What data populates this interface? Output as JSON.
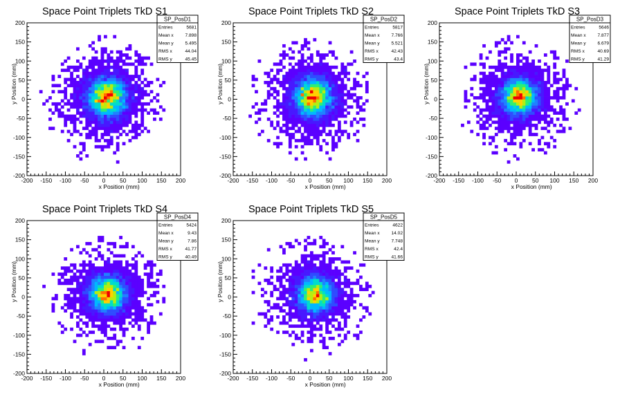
{
  "canvas_background": "#ffffff",
  "palette": [
    "#5b00ff",
    "#4818ff",
    "#2f4cff",
    "#1f82ff",
    "#00b8ff",
    "#00dccc",
    "#30ef70",
    "#b4ee12",
    "#ffd000",
    "#ff7000",
    "#ee0000"
  ],
  "chart_data": [
    {
      "type": "heatmap",
      "title": "Space Point Triplets TkD S1",
      "xlabel": "x Position (mm)",
      "ylabel": "y Position (mm)",
      "xlim": [
        -200,
        200
      ],
      "ylim": [
        -200,
        200
      ],
      "xticks": [
        -200,
        -150,
        -100,
        -50,
        0,
        50,
        100,
        150,
        200
      ],
      "yticks": [
        -200,
        -150,
        -100,
        -50,
        0,
        50,
        100,
        150,
        200
      ],
      "bins": 50,
      "stats": {
        "name": "SP_PosD1",
        "rows": [
          {
            "label": "Entries",
            "value": "5681"
          },
          {
            "label": "Mean x",
            "value": "7.898"
          },
          {
            "label": "Mean y",
            "value": "5.495"
          },
          {
            "label": "RMS x",
            "value": "44.04"
          },
          {
            "label": "RMS y",
            "value": "45.45"
          }
        ]
      }
    },
    {
      "type": "heatmap",
      "title": "Space Point Triplets TkD S2",
      "xlabel": "x Position (mm)",
      "ylabel": "y Position (mm)",
      "xlim": [
        -200,
        200
      ],
      "ylim": [
        -200,
        200
      ],
      "xticks": [
        -200,
        -150,
        -100,
        -50,
        0,
        50,
        100,
        150,
        200
      ],
      "yticks": [
        -200,
        -150,
        -100,
        -50,
        0,
        50,
        100,
        150,
        200
      ],
      "bins": 50,
      "stats": {
        "name": "SP_PosD2",
        "rows": [
          {
            "label": "Entries",
            "value": "5817"
          },
          {
            "label": "Mean x",
            "value": "7.766"
          },
          {
            "label": "Mean y",
            "value": "5.521"
          },
          {
            "label": "RMS x",
            "value": "42.43"
          },
          {
            "label": "RMS y",
            "value": "43.4"
          }
        ]
      }
    },
    {
      "type": "heatmap",
      "title": "Space Point Triplets TkD S3",
      "xlabel": "x Position (mm)",
      "ylabel": "y Position (mm)",
      "xlim": [
        -200,
        200
      ],
      "ylim": [
        -200,
        200
      ],
      "xticks": [
        -200,
        -150,
        -100,
        -50,
        0,
        50,
        100,
        150,
        200
      ],
      "yticks": [
        -200,
        -150,
        -100,
        -50,
        0,
        50,
        100,
        150,
        200
      ],
      "bins": 50,
      "stats": {
        "name": "SP_PosD3",
        "rows": [
          {
            "label": "Entries",
            "value": "5646"
          },
          {
            "label": "Mean x",
            "value": "7.877"
          },
          {
            "label": "Mean y",
            "value": "6.679"
          },
          {
            "label": "RMS x",
            "value": "40.69"
          },
          {
            "label": "RMS y",
            "value": "41.29"
          }
        ]
      }
    },
    {
      "type": "heatmap",
      "title": "Space Point Triplets TkD S4",
      "xlabel": "x Position (mm)",
      "ylabel": "y Position (mm)",
      "xlim": [
        -200,
        200
      ],
      "ylim": [
        -200,
        200
      ],
      "xticks": [
        -200,
        -150,
        -100,
        -50,
        0,
        50,
        100,
        150,
        200
      ],
      "yticks": [
        -200,
        -150,
        -100,
        -50,
        0,
        50,
        100,
        150,
        200
      ],
      "bins": 50,
      "stats": {
        "name": "SP_PosD4",
        "rows": [
          {
            "label": "Entries",
            "value": "5424"
          },
          {
            "label": "Mean x",
            "value": "9.43"
          },
          {
            "label": "Mean y",
            "value": "7.86"
          },
          {
            "label": "RMS x",
            "value": "41.77"
          },
          {
            "label": "RMS y",
            "value": "40.49"
          }
        ]
      }
    },
    {
      "type": "heatmap",
      "title": "Space Point Triplets TkD S5",
      "xlabel": "x Position (mm)",
      "ylabel": "y Position (mm)",
      "xlim": [
        -200,
        200
      ],
      "ylim": [
        -200,
        200
      ],
      "xticks": [
        -200,
        -150,
        -100,
        -50,
        0,
        50,
        100,
        150,
        200
      ],
      "yticks": [
        -200,
        -150,
        -100,
        -50,
        0,
        50,
        100,
        150,
        200
      ],
      "bins": 50,
      "stats": {
        "name": "SP_PosD5",
        "rows": [
          {
            "label": "Entries",
            "value": "4622"
          },
          {
            "label": "Mean x",
            "value": "14.02"
          },
          {
            "label": "Mean y",
            "value": "7.748"
          },
          {
            "label": "RMS x",
            "value": "42.4"
          },
          {
            "label": "RMS y",
            "value": "41.66"
          }
        ]
      }
    }
  ]
}
